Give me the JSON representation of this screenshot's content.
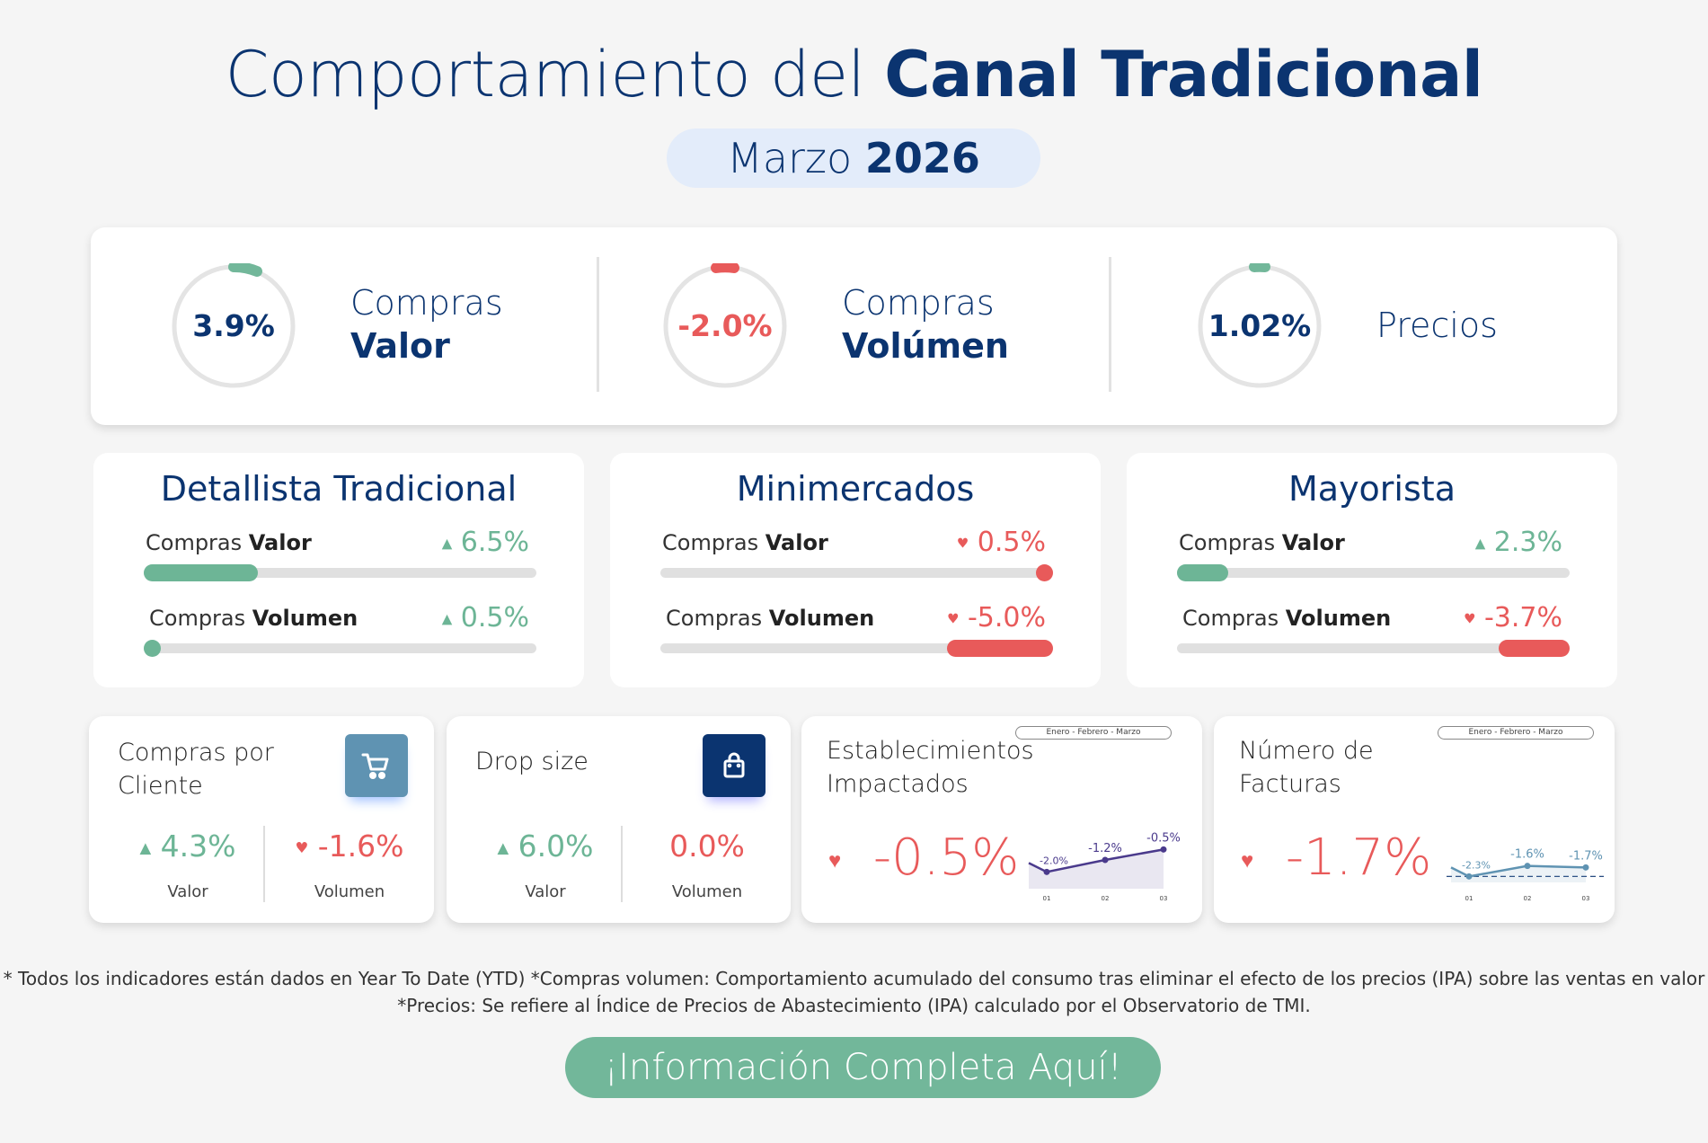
{
  "header": {
    "title_light": "Comportamiento del",
    "title_bold": "Canal Tradicional",
    "month": "Marzo",
    "year": "2026"
  },
  "colors": {
    "navy": "#0b3470",
    "green": "#72b79a",
    "red": "#e85a5a",
    "steel": "#5f93b2"
  },
  "kpis": [
    {
      "value": "3.9%",
      "label1": "Compras",
      "label2": "Valor",
      "trend": "up",
      "color": "#0b3470",
      "arc": "#72b79a"
    },
    {
      "value": "-2.0%",
      "label1": "Compras",
      "label2": "Volúmen",
      "trend": "down",
      "color": "#e85a5a",
      "arc": "#e85a5a"
    },
    {
      "value": "1.02%",
      "label1": "Precios",
      "label2": "",
      "trend": "up",
      "color": "#0b3470",
      "arc": "#72b79a"
    }
  ],
  "segments": [
    {
      "title": "Detallista Tradicional",
      "rows": [
        {
          "label_light": "Compras",
          "label_bold": "Valor",
          "value": "6.5%",
          "trend": "up",
          "progress_pct": 29,
          "align": "left"
        },
        {
          "label_light": "Compras",
          "label_bold": "Volumen",
          "value": "0.5%",
          "trend": "up",
          "progress_pct": 2,
          "align": "left"
        }
      ]
    },
    {
      "title": "Minimercados",
      "rows": [
        {
          "label_light": "Compras",
          "label_bold": "Valor",
          "value": "0.5%",
          "trend": "down",
          "progress_pct": 2,
          "align": "right"
        },
        {
          "label_light": "Compras",
          "label_bold": "Volumen",
          "value": "-5.0%",
          "trend": "down",
          "progress_pct": 27,
          "align": "right"
        }
      ]
    },
    {
      "title": "Mayorista",
      "rows": [
        {
          "label_light": "Compras",
          "label_bold": "Valor",
          "value": "2.3%",
          "trend": "up",
          "progress_pct": 13,
          "align": "left"
        },
        {
          "label_light": "Compras",
          "label_bold": "Volumen",
          "value": "-3.7%",
          "trend": "down",
          "progress_pct": 18,
          "align": "right"
        }
      ]
    }
  ],
  "bottom": {
    "compras_cliente": {
      "title1": "Compras por",
      "title2": "Cliente",
      "icon": "cart-icon",
      "valor": "4.3%",
      "volumen": "-1.6%",
      "valor_label": "Valor",
      "volumen_label": "Volumen"
    },
    "drop_size": {
      "title": "Drop size",
      "icon": "shopping-bag-icon",
      "valor": "6.0%",
      "volumen": "0.0%",
      "valor_label": "Valor",
      "volumen_label": "Volumen"
    },
    "establecimientos": {
      "title1": "Establecimientos",
      "title2": "Impactados",
      "value": "-0.5%",
      "range": "Enero - Febrero - Marzo"
    },
    "facturas": {
      "title1": "Número de",
      "title2": "Facturas",
      "value": "-1.7%",
      "range": "Enero - Febrero - Marzo"
    }
  },
  "chart_data": [
    {
      "type": "line",
      "x": [
        "01",
        "02",
        "03"
      ],
      "values": [
        -2.0,
        -1.2,
        -0.5
      ],
      "labels": [
        "-2.0%",
        "-1.2%",
        "-0.5%"
      ],
      "color": "#4a3a8c"
    },
    {
      "type": "line",
      "x": [
        "01",
        "02",
        "03"
      ],
      "values": [
        -2.3,
        -1.6,
        -1.7
      ],
      "labels": [
        "-2.3%",
        "-1.6%",
        "-1.7%"
      ],
      "color": "#5f93b2"
    }
  ],
  "footer": {
    "line1": "* Todos los indicadores están dados en Year To Date (YTD)  *Compras volumen: Comportamiento acumulado del consumo tras eliminar el efecto de los precios (IPA) sobre las ventas en valor",
    "line2": "*Precios: Se refiere al Índice de Precios de Abastecimiento (IPA) calculado por el Observatorio de TMI.",
    "cta": "¡Información Completa Aquí!"
  }
}
